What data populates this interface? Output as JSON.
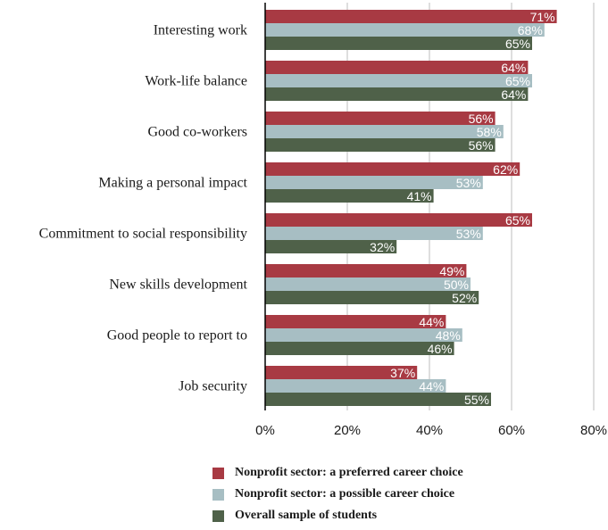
{
  "chart_data": {
    "type": "bar",
    "orientation": "horizontal",
    "categories": [
      "Interesting work",
      "Work-life balance",
      "Good co-workers",
      "Making a personal impact",
      "Commitment to social responsibility",
      "New skills development",
      "Good people to report to",
      "Job security"
    ],
    "series": [
      {
        "name": "Nonprofit sector: a preferred career choice",
        "color": "#a83a43",
        "values": [
          71,
          64,
          56,
          62,
          65,
          49,
          44,
          37
        ]
      },
      {
        "name": "Nonprofit sector: a possible career choice",
        "color": "#a7bec3",
        "values": [
          68,
          65,
          58,
          53,
          53,
          50,
          48,
          44
        ]
      },
      {
        "name": "Overall sample of students",
        "color": "#4f6149",
        "values": [
          65,
          64,
          56,
          41,
          32,
          52,
          46,
          55
        ]
      }
    ],
    "x_ticks": [
      "0%",
      "20%",
      "40%",
      "60%",
      "80%"
    ],
    "xlim": [
      0,
      80
    ],
    "value_suffix": "%",
    "grid": true,
    "legend_position": "bottom"
  }
}
